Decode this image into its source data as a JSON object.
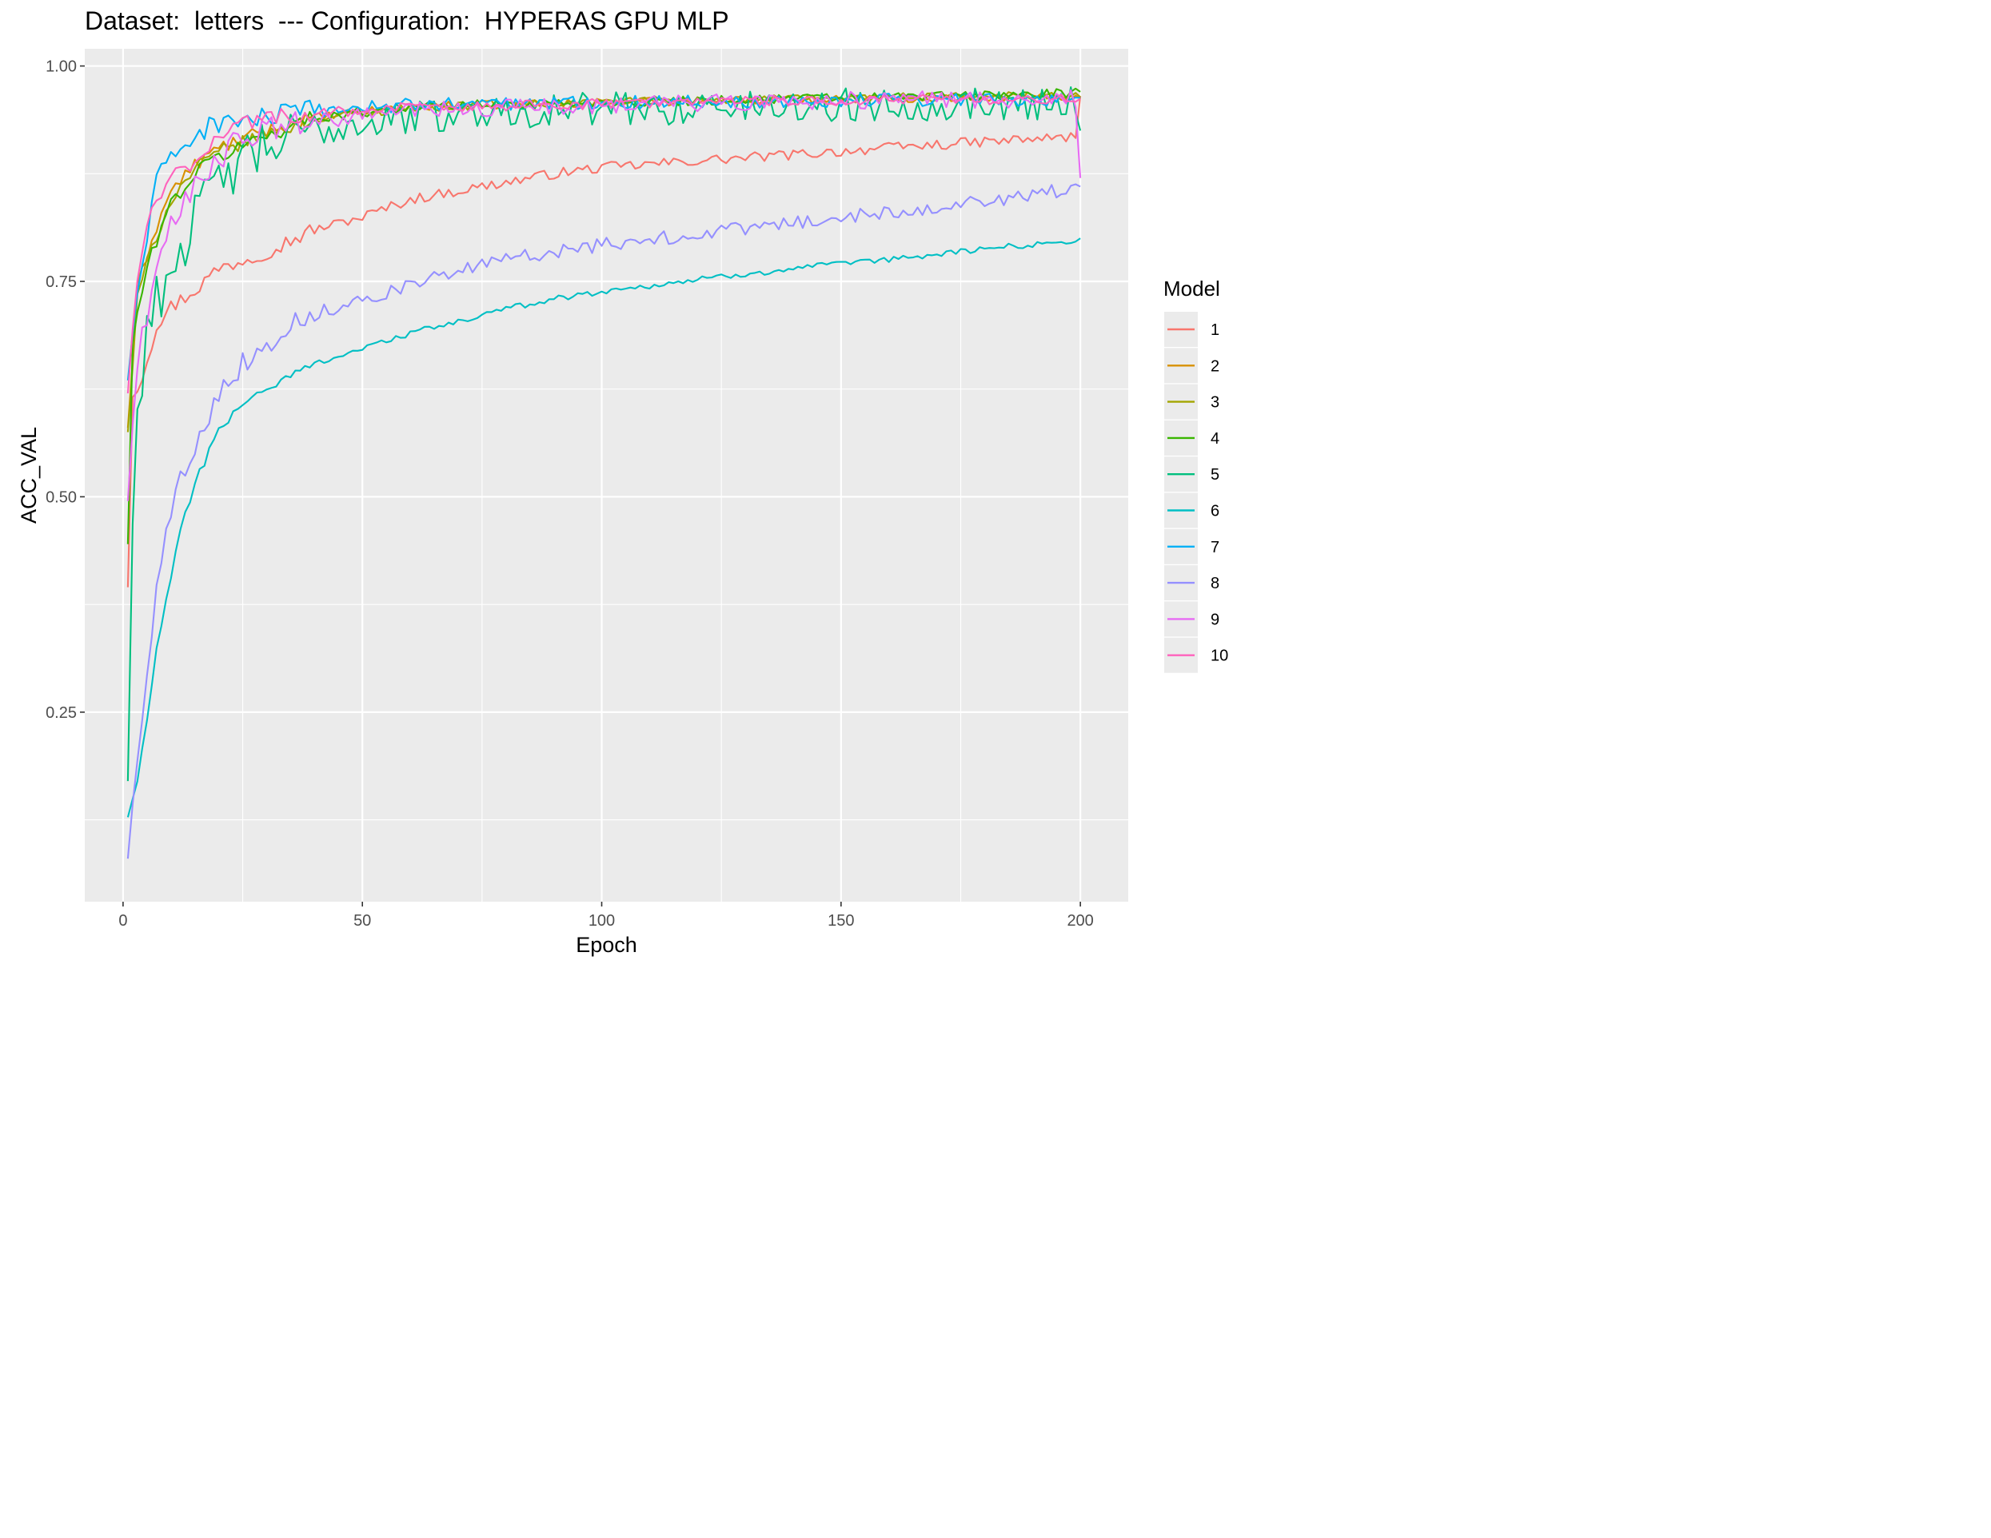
{
  "chart_data": {
    "type": "line",
    "title": "Dataset:  letters  --- Configuration:  HYPERAS GPU MLP",
    "xlabel": "Epoch",
    "ylabel": "ACC_VAL",
    "xlim": [
      -8,
      210
    ],
    "ylim": [
      0.03,
      1.02
    ],
    "x_ticks": [
      0,
      50,
      100,
      150,
      200
    ],
    "x_tick_labels": [
      "0",
      "50",
      "100",
      "150",
      "200"
    ],
    "y_ticks": [
      0.25,
      0.5,
      0.75,
      1.0
    ],
    "y_tick_labels": [
      "0.25",
      "0.50",
      "0.75",
      "1.00"
    ],
    "grid": true,
    "panel_background": "#ebebeb",
    "grid_color": "#ffffff",
    "legend": {
      "title": "Model",
      "position": "right"
    },
    "x_range": [
      1,
      200
    ],
    "series": [
      {
        "name": "1",
        "color": "#F8766D",
        "noise": 0.006,
        "end": 0.965,
        "anchors": [
          [
            1,
            0.395
          ],
          [
            2,
            0.62
          ],
          [
            4,
            0.64
          ],
          [
            7,
            0.7
          ],
          [
            10,
            0.72
          ],
          [
            15,
            0.74
          ],
          [
            20,
            0.765
          ],
          [
            25,
            0.775
          ],
          [
            30,
            0.785
          ],
          [
            40,
            0.81
          ],
          [
            50,
            0.825
          ],
          [
            60,
            0.845
          ],
          [
            70,
            0.855
          ],
          [
            80,
            0.865
          ],
          [
            90,
            0.875
          ],
          [
            100,
            0.882
          ],
          [
            120,
            0.89
          ],
          [
            140,
            0.897
          ],
          [
            160,
            0.905
          ],
          [
            180,
            0.912
          ],
          [
            199,
            0.918
          ]
        ]
      },
      {
        "name": "2",
        "color": "#D89000",
        "noise": 0.005,
        "end": 0.962,
        "anchors": [
          [
            1,
            0.58
          ],
          [
            3,
            0.74
          ],
          [
            6,
            0.8
          ],
          [
            10,
            0.855
          ],
          [
            15,
            0.885
          ],
          [
            20,
            0.905
          ],
          [
            30,
            0.925
          ],
          [
            40,
            0.94
          ],
          [
            60,
            0.953
          ],
          [
            100,
            0.958
          ],
          [
            150,
            0.962
          ],
          [
            199,
            0.965
          ]
        ]
      },
      {
        "name": "3",
        "color": "#A3A500",
        "noise": 0.005,
        "end": 0.964,
        "anchors": [
          [
            1,
            0.575
          ],
          [
            3,
            0.73
          ],
          [
            6,
            0.79
          ],
          [
            10,
            0.845
          ],
          [
            15,
            0.88
          ],
          [
            20,
            0.9
          ],
          [
            30,
            0.922
          ],
          [
            40,
            0.938
          ],
          [
            60,
            0.952
          ],
          [
            100,
            0.958
          ],
          [
            150,
            0.963
          ],
          [
            199,
            0.966
          ]
        ]
      },
      {
        "name": "4",
        "color": "#39B600",
        "noise": 0.006,
        "end": 0.97,
        "anchors": [
          [
            1,
            0.445
          ],
          [
            2,
            0.68
          ],
          [
            4,
            0.74
          ],
          [
            7,
            0.8
          ],
          [
            10,
            0.84
          ],
          [
            15,
            0.875
          ],
          [
            20,
            0.895
          ],
          [
            30,
            0.92
          ],
          [
            40,
            0.94
          ],
          [
            60,
            0.953
          ],
          [
            100,
            0.958
          ],
          [
            150,
            0.963
          ],
          [
            199,
            0.968
          ]
        ]
      },
      {
        "name": "5",
        "color": "#00BF7D",
        "noise": 0.02,
        "end": 0.925,
        "anchors": [
          [
            1,
            0.17
          ],
          [
            2,
            0.47
          ],
          [
            3,
            0.595
          ],
          [
            5,
            0.7
          ],
          [
            8,
            0.74
          ],
          [
            12,
            0.79
          ],
          [
            16,
            0.83
          ],
          [
            20,
            0.865
          ],
          [
            25,
            0.89
          ],
          [
            30,
            0.905
          ],
          [
            40,
            0.925
          ],
          [
            55,
            0.938
          ],
          [
            80,
            0.948
          ],
          [
            120,
            0.952
          ],
          [
            160,
            0.955
          ],
          [
            199,
            0.958
          ]
        ]
      },
      {
        "name": "6",
        "color": "#00BFC4",
        "noise": 0.0035,
        "end": 0.8,
        "anchors": [
          [
            1,
            0.128
          ],
          [
            3,
            0.17
          ],
          [
            5,
            0.24
          ],
          [
            7,
            0.32
          ],
          [
            10,
            0.41
          ],
          [
            13,
            0.48
          ],
          [
            16,
            0.53
          ],
          [
            20,
            0.575
          ],
          [
            25,
            0.61
          ],
          [
            30,
            0.625
          ],
          [
            40,
            0.655
          ],
          [
            50,
            0.672
          ],
          [
            60,
            0.69
          ],
          [
            70,
            0.703
          ],
          [
            80,
            0.718
          ],
          [
            90,
            0.73
          ],
          [
            100,
            0.738
          ],
          [
            120,
            0.752
          ],
          [
            140,
            0.765
          ],
          [
            160,
            0.775
          ],
          [
            180,
            0.788
          ],
          [
            199,
            0.797
          ]
        ]
      },
      {
        "name": "7",
        "color": "#00B0F6",
        "noise": 0.008,
        "end": 0.963,
        "anchors": [
          [
            1,
            0.635
          ],
          [
            3,
            0.74
          ],
          [
            5,
            0.8
          ],
          [
            7,
            0.865
          ],
          [
            10,
            0.895
          ],
          [
            15,
            0.92
          ],
          [
            20,
            0.935
          ],
          [
            30,
            0.94
          ],
          [
            40,
            0.948
          ],
          [
            60,
            0.955
          ],
          [
            100,
            0.958
          ],
          [
            150,
            0.96
          ],
          [
            199,
            0.962
          ]
        ]
      },
      {
        "name": "8",
        "color": "#9590FF",
        "noise": 0.008,
        "end": 0.86,
        "anchors": [
          [
            1,
            0.08
          ],
          [
            3,
            0.2
          ],
          [
            5,
            0.3
          ],
          [
            7,
            0.39
          ],
          [
            9,
            0.46
          ],
          [
            12,
            0.52
          ],
          [
            16,
            0.575
          ],
          [
            20,
            0.62
          ],
          [
            25,
            0.655
          ],
          [
            30,
            0.675
          ],
          [
            35,
            0.7
          ],
          [
            40,
            0.712
          ],
          [
            50,
            0.73
          ],
          [
            60,
            0.745
          ],
          [
            70,
            0.762
          ],
          [
            80,
            0.775
          ],
          [
            90,
            0.785
          ],
          [
            100,
            0.792
          ],
          [
            120,
            0.805
          ],
          [
            140,
            0.818
          ],
          [
            160,
            0.83
          ],
          [
            180,
            0.843
          ],
          [
            199,
            0.858
          ]
        ]
      },
      {
        "name": "9",
        "color": "#E76BF3",
        "noise": 0.01,
        "end": 0.87,
        "anchors": [
          [
            1,
            0.495
          ],
          [
            3,
            0.66
          ],
          [
            6,
            0.74
          ],
          [
            10,
            0.81
          ],
          [
            15,
            0.865
          ],
          [
            20,
            0.895
          ],
          [
            25,
            0.915
          ],
          [
            30,
            0.925
          ],
          [
            40,
            0.935
          ],
          [
            60,
            0.948
          ],
          [
            100,
            0.955
          ],
          [
            150,
            0.96
          ],
          [
            199,
            0.962
          ]
        ]
      },
      {
        "name": "10",
        "color": "#FF62BC",
        "noise": 0.006,
        "end": 0.962,
        "anchors": [
          [
            1,
            0.62
          ],
          [
            3,
            0.76
          ],
          [
            6,
            0.83
          ],
          [
            10,
            0.87
          ],
          [
            15,
            0.89
          ],
          [
            20,
            0.92
          ],
          [
            25,
            0.935
          ],
          [
            30,
            0.94
          ],
          [
            40,
            0.945
          ],
          [
            60,
            0.952
          ],
          [
            100,
            0.956
          ],
          [
            150,
            0.96
          ],
          [
            199,
            0.962
          ]
        ]
      }
    ]
  }
}
